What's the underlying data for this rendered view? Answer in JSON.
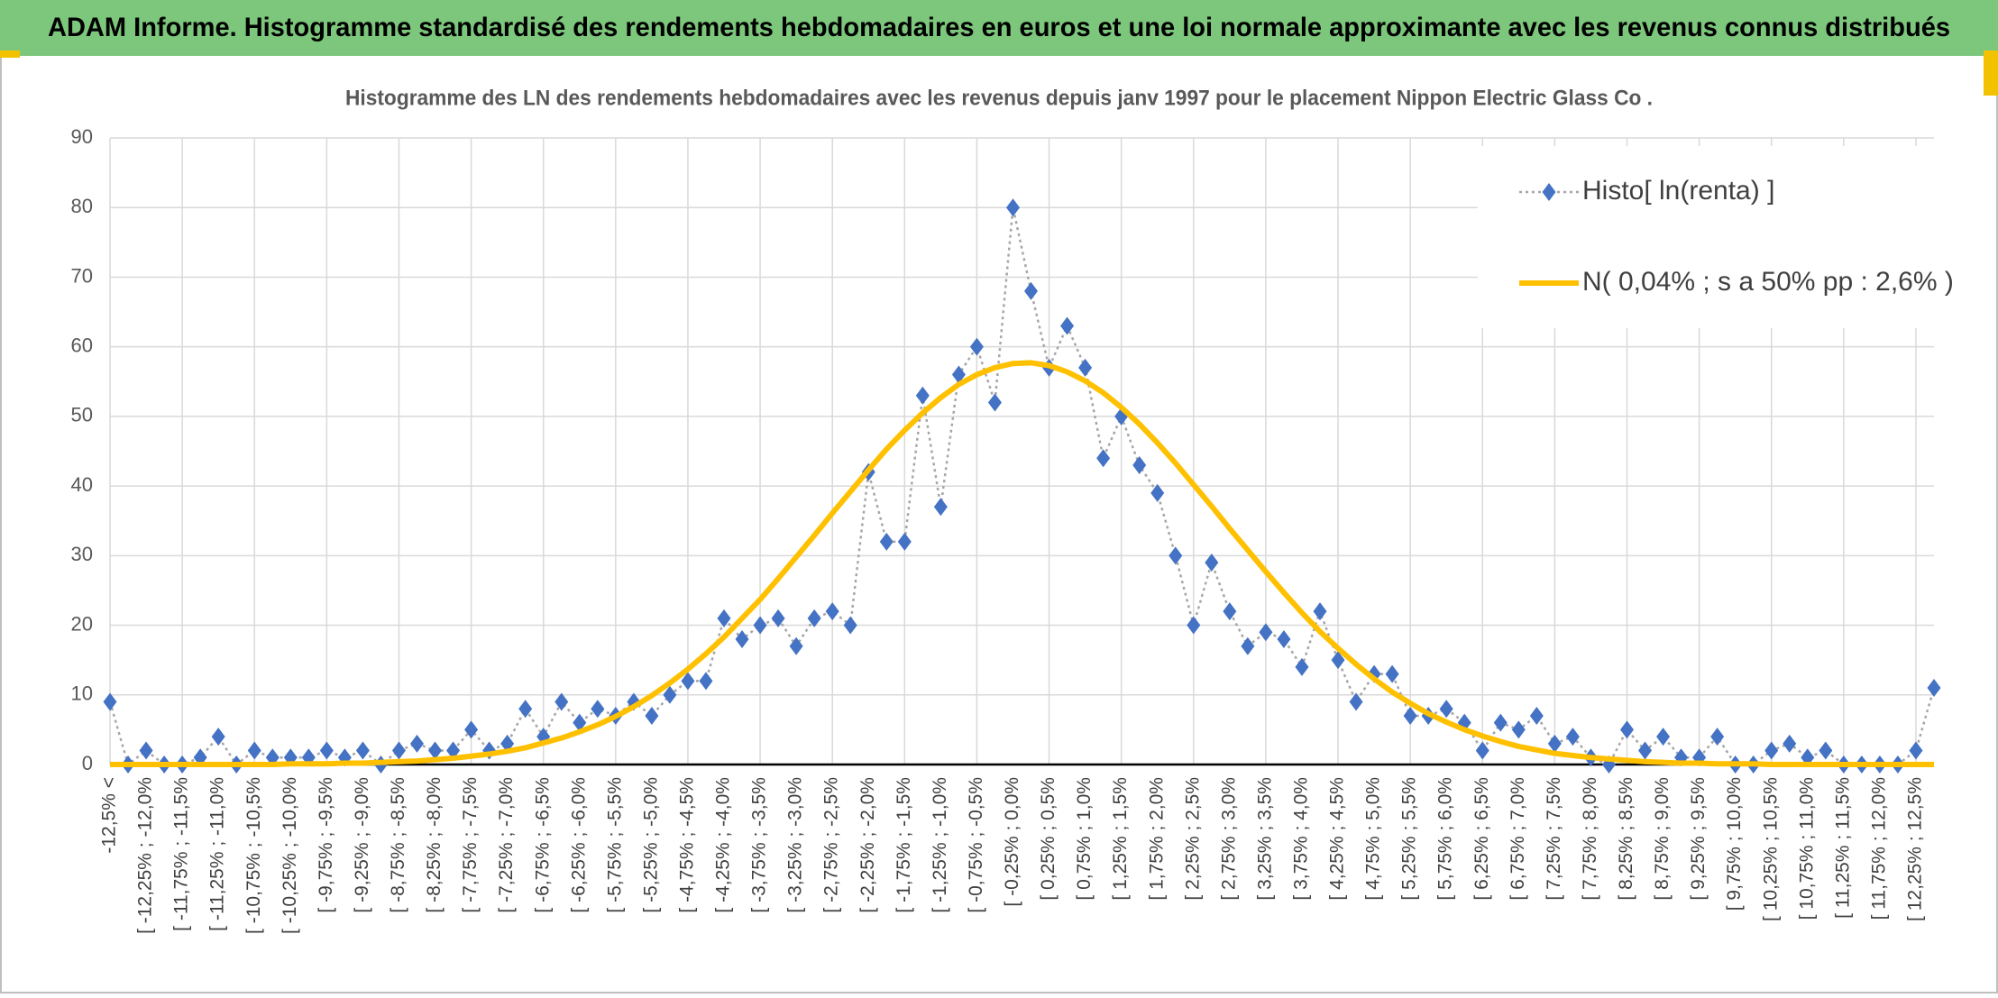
{
  "header": {
    "title": "ADAM Informe. Histogramme standardisé des rendements hebdomadaires en euros et une loi normale approximante avec les revenus connus distribués"
  },
  "chart_data": {
    "type": "line",
    "title": "Histogramme des LN des rendements hebdomadaires avec les revenus depuis janv 1997 pour le placement Nippon Electric Glass Co .",
    "categories": [
      "-12,5% <",
      null,
      "[ -12,25% ; -12,0%",
      null,
      "[ -11,75% ; -11,5%",
      null,
      "[ -11,25% ; -11,0%",
      null,
      "[ -10,75% ; -10,5%",
      null,
      "[ -10,25% ; -10,0%",
      null,
      "[ -9,75% ; -9,5%",
      null,
      "[ -9,25% ; -9,0%",
      null,
      "[ -8,75% ; -8,5%",
      null,
      "[ -8,25% ; -8,0%",
      null,
      "[ -7,75% ; -7,5%",
      null,
      "[ -7,25% ; -7,0%",
      null,
      "[ -6,75% ; -6,5%",
      null,
      "[ -6,25% ; -6,0%",
      null,
      "[ -5,75% ; -5,5%",
      null,
      "[ -5,25% ; -5,0%",
      null,
      "[ -4,75% ; -4,5%",
      null,
      "[ -4,25% ; -4,0%",
      null,
      "[ -3,75% ; -3,5%",
      null,
      "[ -3,25% ; -3,0%",
      null,
      "[ -2,75% ; -2,5%",
      null,
      "[ -2,25% ; -2,0%",
      null,
      "[ -1,75% ; -1,5%",
      null,
      "[ -1,25% ; -1,0%",
      null,
      "[ -0,75% ; -0,5%",
      null,
      "[ -0,25% ; 0,0%",
      null,
      "[ 0,25% ; 0,5%",
      null,
      "[ 0,75% ; 1,0%",
      null,
      "[ 1,25% ; 1,5%",
      null,
      "[ 1,75% ; 2,0%",
      null,
      "[ 2,25% ; 2,5%",
      null,
      "[ 2,75% ; 3,0%",
      null,
      "[ 3,25% ; 3,5%",
      null,
      "[ 3,75% ; 4,0%",
      null,
      "[ 4,25% ; 4,5%",
      null,
      "[ 4,75% ; 5,0%",
      null,
      "[ 5,25% ; 5,5%",
      null,
      "[ 5,75% ; 6,0%",
      null,
      "[ 6,25% ; 6,5%",
      null,
      "[ 6,75% ; 7,0%",
      null,
      "[ 7,25% ; 7,5%",
      null,
      "[ 7,75% ; 8,0%",
      null,
      "[ 8,25% ; 8,5%",
      null,
      "[ 8,75% ; 9,0%",
      null,
      "[ 9,25% ; 9,5%",
      null,
      "[ 9,75% ; 10,0%",
      null,
      "[ 10,25% ; 10,5%",
      null,
      "[ 10,75% ; 11,0%",
      null,
      "[ 11,25% ; 11,5%",
      null,
      "[ 11,75% ; 12,0%",
      null,
      "[ 12,25% ; 12,5%",
      null
    ],
    "series": [
      {
        "name": "Histo[ ln(renta) ]",
        "color": "#4472c4",
        "line_color": "#a6a6a6",
        "marker": "diamond",
        "dash": "dotted",
        "values": [
          9,
          0,
          2,
          0,
          0,
          1,
          4,
          0,
          2,
          1,
          1,
          1,
          2,
          1,
          2,
          0,
          2,
          3,
          2,
          2,
          5,
          2,
          3,
          8,
          4,
          9,
          6,
          8,
          7,
          9,
          7,
          10,
          12,
          12,
          21,
          18,
          20,
          21,
          17,
          21,
          22,
          20,
          42,
          32,
          32,
          53,
          37,
          56,
          60,
          52,
          80,
          68,
          57,
          63,
          57,
          44,
          50,
          43,
          39,
          30,
          20,
          29,
          22,
          17,
          19,
          18,
          14,
          22,
          15,
          9,
          13,
          13,
          7,
          7,
          8,
          6,
          2,
          6,
          5,
          7,
          3,
          4,
          1,
          0,
          5,
          2,
          4,
          1,
          1,
          4,
          0,
          0,
          2,
          3,
          1,
          2,
          0,
          0,
          0,
          0,
          2,
          11
        ]
      },
      {
        "name": "N( 0,04% ; s a 50% pp : 2,6% )",
        "color": "#ffc000",
        "marker": "none",
        "dash": "solid",
        "values": [
          0,
          0,
          0,
          0,
          0,
          0,
          0,
          0,
          0,
          0,
          0.1,
          0.1,
          0.1,
          0.2,
          0.2,
          0.3,
          0.4,
          0.5,
          0.7,
          0.9,
          1.2,
          1.5,
          1.9,
          2.4,
          3.1,
          3.8,
          4.7,
          5.7,
          6.9,
          8.3,
          9.9,
          11.7,
          13.7,
          15.9,
          18.3,
          21.0,
          23.7,
          26.7,
          29.8,
          32.9,
          36.1,
          39.2,
          42.3,
          45.3,
          48.0,
          50.5,
          52.7,
          54.6,
          56.0,
          57.0,
          57.6,
          57.7,
          57.3,
          56.4,
          55.1,
          53.4,
          51.3,
          48.9,
          46.2,
          43.3,
          40.2,
          37.1,
          33.9,
          30.8,
          27.7,
          24.7,
          21.8,
          19.1,
          16.7,
          14.4,
          12.3,
          10.4,
          8.8,
          7.3,
          6.1,
          5.0,
          4.1,
          3.3,
          2.6,
          2.1,
          1.6,
          1.3,
          1.0,
          0.8,
          0.6,
          0.4,
          0.3,
          0.2,
          0.2,
          0.1,
          0.1,
          0.1,
          0,
          0,
          0,
          0,
          0,
          0,
          0,
          0,
          0,
          0
        ]
      }
    ],
    "ylim": [
      0,
      90
    ],
    "yticks": [
      0,
      10,
      20,
      30,
      40,
      50,
      60,
      70,
      80,
      90
    ],
    "grid": true,
    "legend": "top-right"
  }
}
